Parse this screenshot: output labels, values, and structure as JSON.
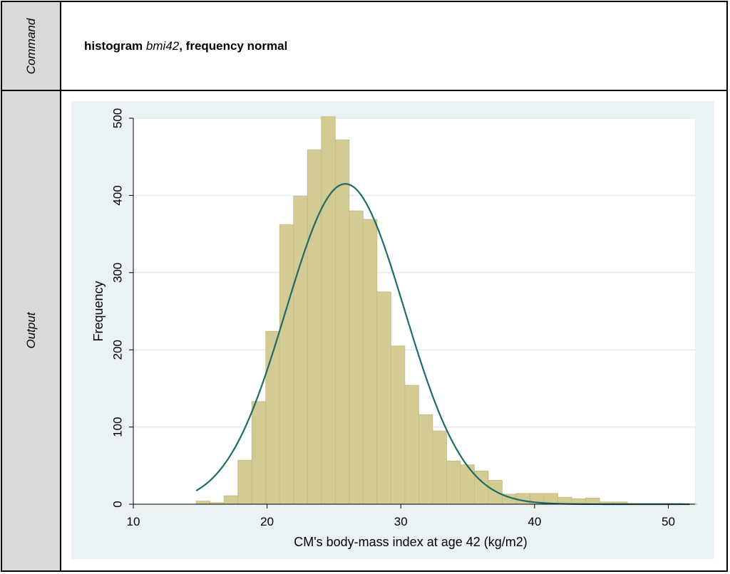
{
  "rows": {
    "command_label": "Command",
    "output_label": "Output"
  },
  "command": {
    "keyword": "histogram",
    "variable": "bmi42",
    "options": ", frequency normal"
  },
  "colors": {
    "bar_fill": "#d3cb94",
    "bar_stroke": "#c2b97d",
    "curve": "#1e6b68",
    "plot_bg": "#ffffff",
    "graph_bg": "#eaf2f3",
    "label_bg": "#d9d9d9",
    "grid": "#e3ecee"
  },
  "chart_data": {
    "type": "bar",
    "xlabel": "CM's body-mass index at age 42 (kg/m2)",
    "ylabel": "Frequency",
    "xlim": [
      10,
      52
    ],
    "ylim": [
      0,
      500
    ],
    "xticks": [
      10,
      20,
      30,
      40,
      50
    ],
    "yticks": [
      0,
      100,
      200,
      300,
      400,
      500
    ],
    "grid": true,
    "bin_width": 1.04,
    "bins": [
      {
        "start": 14.7,
        "count": 4
      },
      {
        "start": 15.74,
        "count": 2
      },
      {
        "start": 16.78,
        "count": 11
      },
      {
        "start": 17.82,
        "count": 57
      },
      {
        "start": 18.86,
        "count": 133
      },
      {
        "start": 19.9,
        "count": 224
      },
      {
        "start": 20.94,
        "count": 362
      },
      {
        "start": 21.98,
        "count": 399
      },
      {
        "start": 23.02,
        "count": 459
      },
      {
        "start": 24.06,
        "count": 502
      },
      {
        "start": 25.1,
        "count": 472
      },
      {
        "start": 26.14,
        "count": 380
      },
      {
        "start": 27.18,
        "count": 369
      },
      {
        "start": 28.22,
        "count": 275
      },
      {
        "start": 29.26,
        "count": 205
      },
      {
        "start": 30.3,
        "count": 154
      },
      {
        "start": 31.34,
        "count": 116
      },
      {
        "start": 32.38,
        "count": 95
      },
      {
        "start": 33.42,
        "count": 56
      },
      {
        "start": 34.46,
        "count": 51
      },
      {
        "start": 35.5,
        "count": 43
      },
      {
        "start": 36.54,
        "count": 31
      },
      {
        "start": 37.58,
        "count": 13
      },
      {
        "start": 38.62,
        "count": 14
      },
      {
        "start": 39.66,
        "count": 14
      },
      {
        "start": 40.7,
        "count": 14
      },
      {
        "start": 41.74,
        "count": 9
      },
      {
        "start": 42.78,
        "count": 7
      },
      {
        "start": 43.82,
        "count": 8
      },
      {
        "start": 44.86,
        "count": 3
      },
      {
        "start": 45.9,
        "count": 3
      },
      {
        "start": 46.94,
        "count": 1
      },
      {
        "start": 47.98,
        "count": 1
      },
      {
        "start": 49.02,
        "count": 1
      },
      {
        "start": 50.06,
        "count": 1
      },
      {
        "start": 51.1,
        "count": 0.5
      }
    ],
    "normal_curve": {
      "mean": 25.85,
      "sd": 4.43,
      "peak": 415,
      "x_range": [
        14.7,
        51.6
      ]
    }
  }
}
